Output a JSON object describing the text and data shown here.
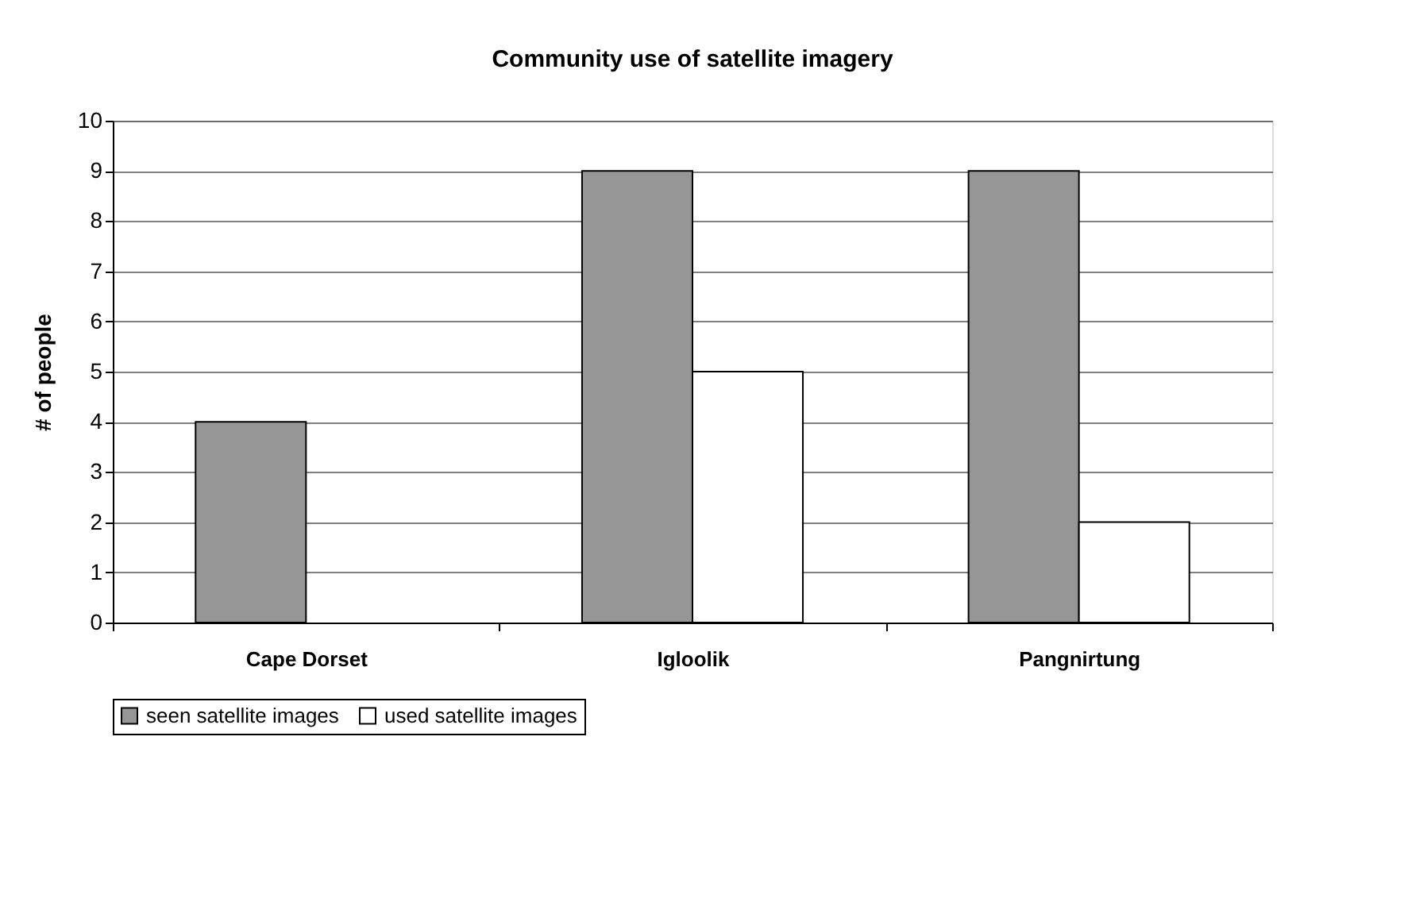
{
  "chart_data": {
    "type": "bar",
    "title": "Community use of satellite imagery",
    "ylabel": "# of people",
    "categories": [
      "Cape Dorset",
      "Igloolik",
      "Pangnirtung"
    ],
    "series": [
      {
        "name": "seen satellite images",
        "color": "#969696",
        "values": [
          4,
          9,
          9
        ]
      },
      {
        "name": "used satellite images",
        "color": "#ffffff",
        "values": [
          null,
          5,
          2
        ]
      }
    ],
    "ylim": [
      0,
      10
    ],
    "yticks": [
      0,
      1,
      2,
      3,
      4,
      5,
      6,
      7,
      8,
      9,
      10
    ],
    "grid": "y",
    "legend": "bottom"
  }
}
